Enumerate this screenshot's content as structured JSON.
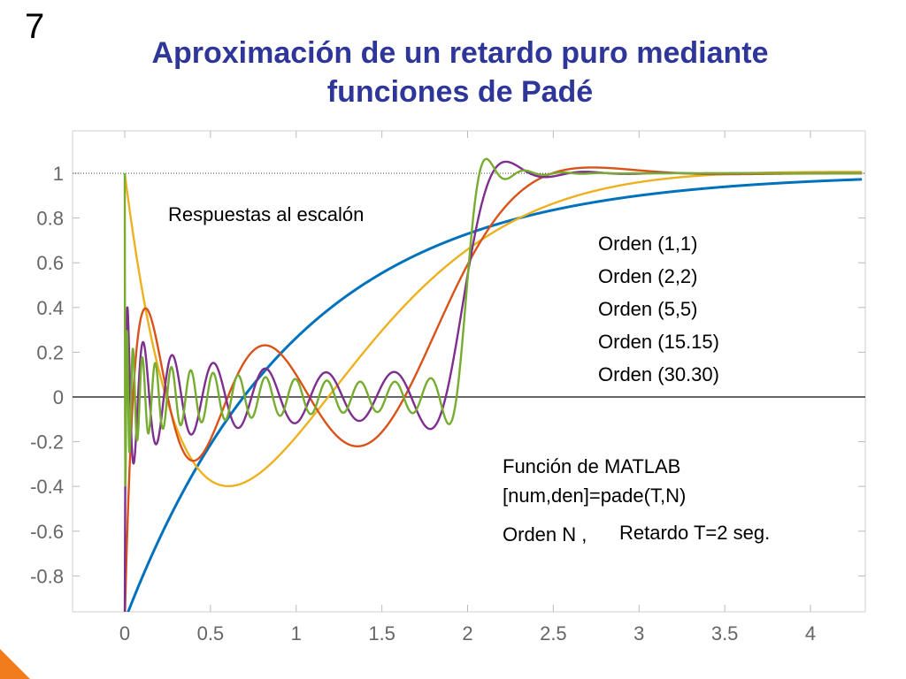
{
  "slide": {
    "number": "7",
    "title_line1": "Aproximación de un retardo puro mediante",
    "title_line2": "funciones de Padé"
  },
  "colors": {
    "title": "#2f3699",
    "accent": "#f07c1e"
  },
  "chart_data": {
    "type": "line",
    "title": "Respuestas al escalón",
    "xlabel": "",
    "ylabel": "",
    "xlim": [
      -0.3,
      4.35
    ],
    "ylim": [
      -0.95,
      1.18
    ],
    "x_ticks": [
      0,
      0.5,
      1,
      1.5,
      2,
      2.5,
      3,
      3.5,
      4
    ],
    "x_tick_labels": [
      "0",
      "0.5",
      "1",
      "1.5",
      "2",
      "2.5",
      "3",
      "3.5",
      "4"
    ],
    "y_ticks": [
      1,
      0.8,
      0.6,
      0.4,
      0.2,
      0,
      -0.2,
      -0.4,
      -0.6,
      -0.8
    ],
    "y_tick_labels": [
      "1",
      "0.8",
      "0.6",
      "0.4",
      "0.2",
      "0",
      "-0.2",
      "-0.4",
      "-0.6",
      "-0.8"
    ],
    "grid": false,
    "delay_T": 2,
    "reference_lines": [
      {
        "y": 1,
        "style": "dotted"
      },
      {
        "y": 0,
        "style": "solid"
      }
    ],
    "legend": {
      "placement": "right",
      "entries": [
        "Orden (1,1)",
        "Orden (2,2)",
        "Orden (5,5)",
        "Orden (15.15)",
        "Orden (30.30)"
      ]
    },
    "series": [
      {
        "name": "Orden (1,1)",
        "order": 1,
        "color": "#0072bd"
      },
      {
        "name": "Orden (2,2)",
        "order": 2,
        "color": "#edb120"
      },
      {
        "name": "Orden (5,5)",
        "order": 5,
        "color": "#d95319"
      },
      {
        "name": "Orden (15.15)",
        "order": 15,
        "color": "#7e2f8e"
      },
      {
        "name": "Orden (30.30)",
        "order": 30,
        "color": "#77ac30"
      }
    ],
    "annotations": {
      "matlab_line1": "Función de MATLAB",
      "matlab_line2": "[num,den]=pade(T,N)",
      "orden_n": "Orden N ,",
      "retardo": "Retardo T=2 seg."
    }
  }
}
